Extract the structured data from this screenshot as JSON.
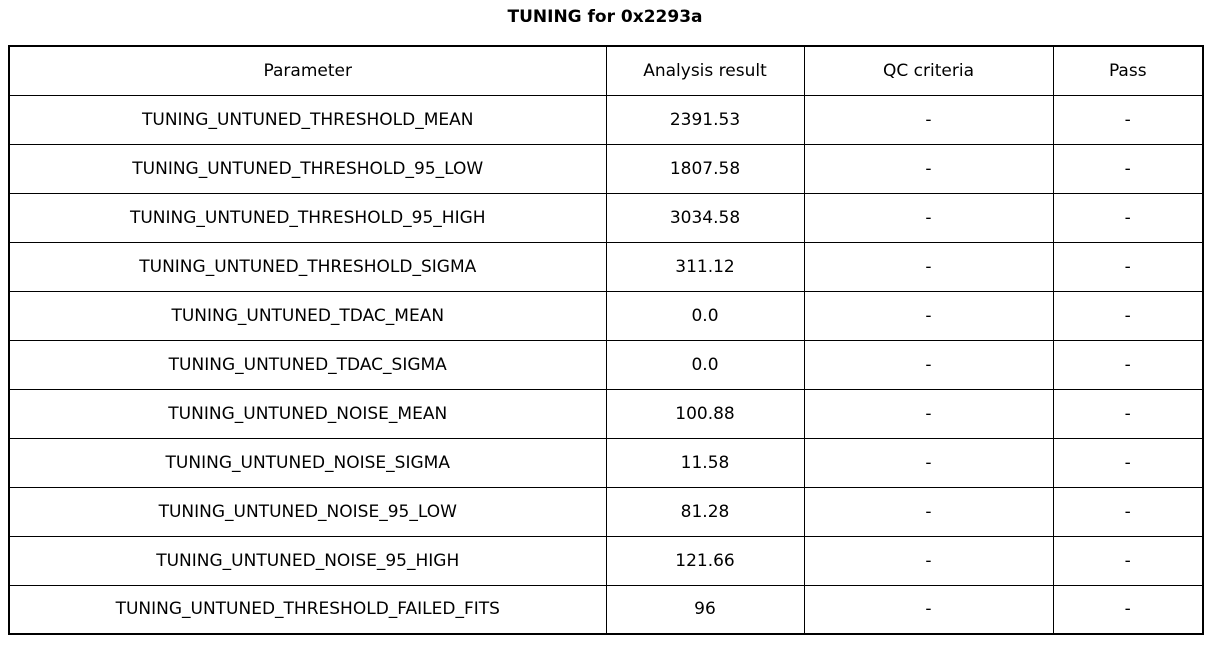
{
  "chart_data": {
    "type": "table",
    "title": "TUNING for 0x2293a",
    "columns": [
      "Parameter",
      "Analysis result",
      "QC criteria",
      "Pass"
    ],
    "rows": [
      [
        "TUNING_UNTUNED_THRESHOLD_MEAN",
        "2391.53",
        "-",
        "-"
      ],
      [
        "TUNING_UNTUNED_THRESHOLD_95_LOW",
        "1807.58",
        "-",
        "-"
      ],
      [
        "TUNING_UNTUNED_THRESHOLD_95_HIGH",
        "3034.58",
        "-",
        "-"
      ],
      [
        "TUNING_UNTUNED_THRESHOLD_SIGMA",
        "311.12",
        "-",
        "-"
      ],
      [
        "TUNING_UNTUNED_TDAC_MEAN",
        "0.0",
        "-",
        "-"
      ],
      [
        "TUNING_UNTUNED_TDAC_SIGMA",
        "0.0",
        "-",
        "-"
      ],
      [
        "TUNING_UNTUNED_NOISE_MEAN",
        "100.88",
        "-",
        "-"
      ],
      [
        "TUNING_UNTUNED_NOISE_SIGMA",
        "11.58",
        "-",
        "-"
      ],
      [
        "TUNING_UNTUNED_NOISE_95_LOW",
        "81.28",
        "-",
        "-"
      ],
      [
        "TUNING_UNTUNED_NOISE_95_HIGH",
        "121.66",
        "-",
        "-"
      ],
      [
        "TUNING_UNTUNED_THRESHOLD_FAILED_FITS",
        "96",
        "-",
        "-"
      ]
    ],
    "layout": {
      "grid": true,
      "header_row": true,
      "text_align": "center"
    }
  }
}
